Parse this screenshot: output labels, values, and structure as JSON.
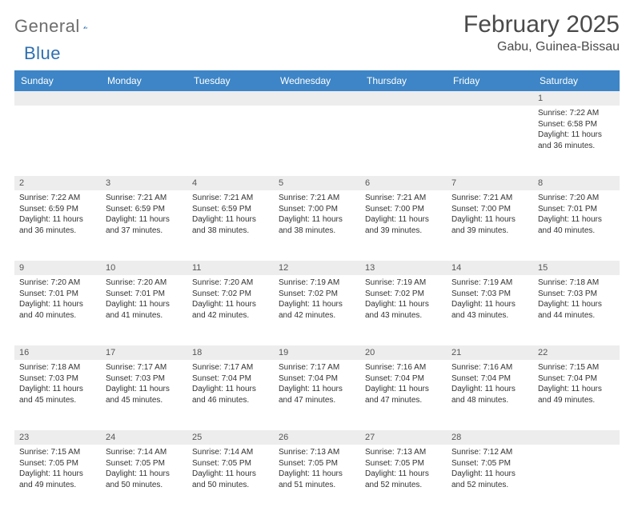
{
  "brand": {
    "text1": "General",
    "text2": "Blue"
  },
  "header": {
    "title": "February 2025",
    "location": "Gabu, Guinea-Bissau"
  },
  "colors": {
    "header_bg": "#3d85c6",
    "header_text": "#ffffff",
    "daynum_bg": "#ededed",
    "week_divider": "#5b7a99",
    "text": "#333333",
    "brand_gray": "#6d6d6d",
    "brand_blue": "#2f6fb0"
  },
  "weekdays": [
    "Sunday",
    "Monday",
    "Tuesday",
    "Wednesday",
    "Thursday",
    "Friday",
    "Saturday"
  ],
  "weeks": [
    [
      {
        "day": "",
        "sunrise": "",
        "sunset": "",
        "daylight": ""
      },
      {
        "day": "",
        "sunrise": "",
        "sunset": "",
        "daylight": ""
      },
      {
        "day": "",
        "sunrise": "",
        "sunset": "",
        "daylight": ""
      },
      {
        "day": "",
        "sunrise": "",
        "sunset": "",
        "daylight": ""
      },
      {
        "day": "",
        "sunrise": "",
        "sunset": "",
        "daylight": ""
      },
      {
        "day": "",
        "sunrise": "",
        "sunset": "",
        "daylight": ""
      },
      {
        "day": "1",
        "sunrise": "Sunrise: 7:22 AM",
        "sunset": "Sunset: 6:58 PM",
        "daylight": "Daylight: 11 hours and 36 minutes."
      }
    ],
    [
      {
        "day": "2",
        "sunrise": "Sunrise: 7:22 AM",
        "sunset": "Sunset: 6:59 PM",
        "daylight": "Daylight: 11 hours and 36 minutes."
      },
      {
        "day": "3",
        "sunrise": "Sunrise: 7:21 AM",
        "sunset": "Sunset: 6:59 PM",
        "daylight": "Daylight: 11 hours and 37 minutes."
      },
      {
        "day": "4",
        "sunrise": "Sunrise: 7:21 AM",
        "sunset": "Sunset: 6:59 PM",
        "daylight": "Daylight: 11 hours and 38 minutes."
      },
      {
        "day": "5",
        "sunrise": "Sunrise: 7:21 AM",
        "sunset": "Sunset: 7:00 PM",
        "daylight": "Daylight: 11 hours and 38 minutes."
      },
      {
        "day": "6",
        "sunrise": "Sunrise: 7:21 AM",
        "sunset": "Sunset: 7:00 PM",
        "daylight": "Daylight: 11 hours and 39 minutes."
      },
      {
        "day": "7",
        "sunrise": "Sunrise: 7:21 AM",
        "sunset": "Sunset: 7:00 PM",
        "daylight": "Daylight: 11 hours and 39 minutes."
      },
      {
        "day": "8",
        "sunrise": "Sunrise: 7:20 AM",
        "sunset": "Sunset: 7:01 PM",
        "daylight": "Daylight: 11 hours and 40 minutes."
      }
    ],
    [
      {
        "day": "9",
        "sunrise": "Sunrise: 7:20 AM",
        "sunset": "Sunset: 7:01 PM",
        "daylight": "Daylight: 11 hours and 40 minutes."
      },
      {
        "day": "10",
        "sunrise": "Sunrise: 7:20 AM",
        "sunset": "Sunset: 7:01 PM",
        "daylight": "Daylight: 11 hours and 41 minutes."
      },
      {
        "day": "11",
        "sunrise": "Sunrise: 7:20 AM",
        "sunset": "Sunset: 7:02 PM",
        "daylight": "Daylight: 11 hours and 42 minutes."
      },
      {
        "day": "12",
        "sunrise": "Sunrise: 7:19 AM",
        "sunset": "Sunset: 7:02 PM",
        "daylight": "Daylight: 11 hours and 42 minutes."
      },
      {
        "day": "13",
        "sunrise": "Sunrise: 7:19 AM",
        "sunset": "Sunset: 7:02 PM",
        "daylight": "Daylight: 11 hours and 43 minutes."
      },
      {
        "day": "14",
        "sunrise": "Sunrise: 7:19 AM",
        "sunset": "Sunset: 7:03 PM",
        "daylight": "Daylight: 11 hours and 43 minutes."
      },
      {
        "day": "15",
        "sunrise": "Sunrise: 7:18 AM",
        "sunset": "Sunset: 7:03 PM",
        "daylight": "Daylight: 11 hours and 44 minutes."
      }
    ],
    [
      {
        "day": "16",
        "sunrise": "Sunrise: 7:18 AM",
        "sunset": "Sunset: 7:03 PM",
        "daylight": "Daylight: 11 hours and 45 minutes."
      },
      {
        "day": "17",
        "sunrise": "Sunrise: 7:17 AM",
        "sunset": "Sunset: 7:03 PM",
        "daylight": "Daylight: 11 hours and 45 minutes."
      },
      {
        "day": "18",
        "sunrise": "Sunrise: 7:17 AM",
        "sunset": "Sunset: 7:04 PM",
        "daylight": "Daylight: 11 hours and 46 minutes."
      },
      {
        "day": "19",
        "sunrise": "Sunrise: 7:17 AM",
        "sunset": "Sunset: 7:04 PM",
        "daylight": "Daylight: 11 hours and 47 minutes."
      },
      {
        "day": "20",
        "sunrise": "Sunrise: 7:16 AM",
        "sunset": "Sunset: 7:04 PM",
        "daylight": "Daylight: 11 hours and 47 minutes."
      },
      {
        "day": "21",
        "sunrise": "Sunrise: 7:16 AM",
        "sunset": "Sunset: 7:04 PM",
        "daylight": "Daylight: 11 hours and 48 minutes."
      },
      {
        "day": "22",
        "sunrise": "Sunrise: 7:15 AM",
        "sunset": "Sunset: 7:04 PM",
        "daylight": "Daylight: 11 hours and 49 minutes."
      }
    ],
    [
      {
        "day": "23",
        "sunrise": "Sunrise: 7:15 AM",
        "sunset": "Sunset: 7:05 PM",
        "daylight": "Daylight: 11 hours and 49 minutes."
      },
      {
        "day": "24",
        "sunrise": "Sunrise: 7:14 AM",
        "sunset": "Sunset: 7:05 PM",
        "daylight": "Daylight: 11 hours and 50 minutes."
      },
      {
        "day": "25",
        "sunrise": "Sunrise: 7:14 AM",
        "sunset": "Sunset: 7:05 PM",
        "daylight": "Daylight: 11 hours and 50 minutes."
      },
      {
        "day": "26",
        "sunrise": "Sunrise: 7:13 AM",
        "sunset": "Sunset: 7:05 PM",
        "daylight": "Daylight: 11 hours and 51 minutes."
      },
      {
        "day": "27",
        "sunrise": "Sunrise: 7:13 AM",
        "sunset": "Sunset: 7:05 PM",
        "daylight": "Daylight: 11 hours and 52 minutes."
      },
      {
        "day": "28",
        "sunrise": "Sunrise: 7:12 AM",
        "sunset": "Sunset: 7:05 PM",
        "daylight": "Daylight: 11 hours and 52 minutes."
      },
      {
        "day": "",
        "sunrise": "",
        "sunset": "",
        "daylight": ""
      }
    ]
  ]
}
